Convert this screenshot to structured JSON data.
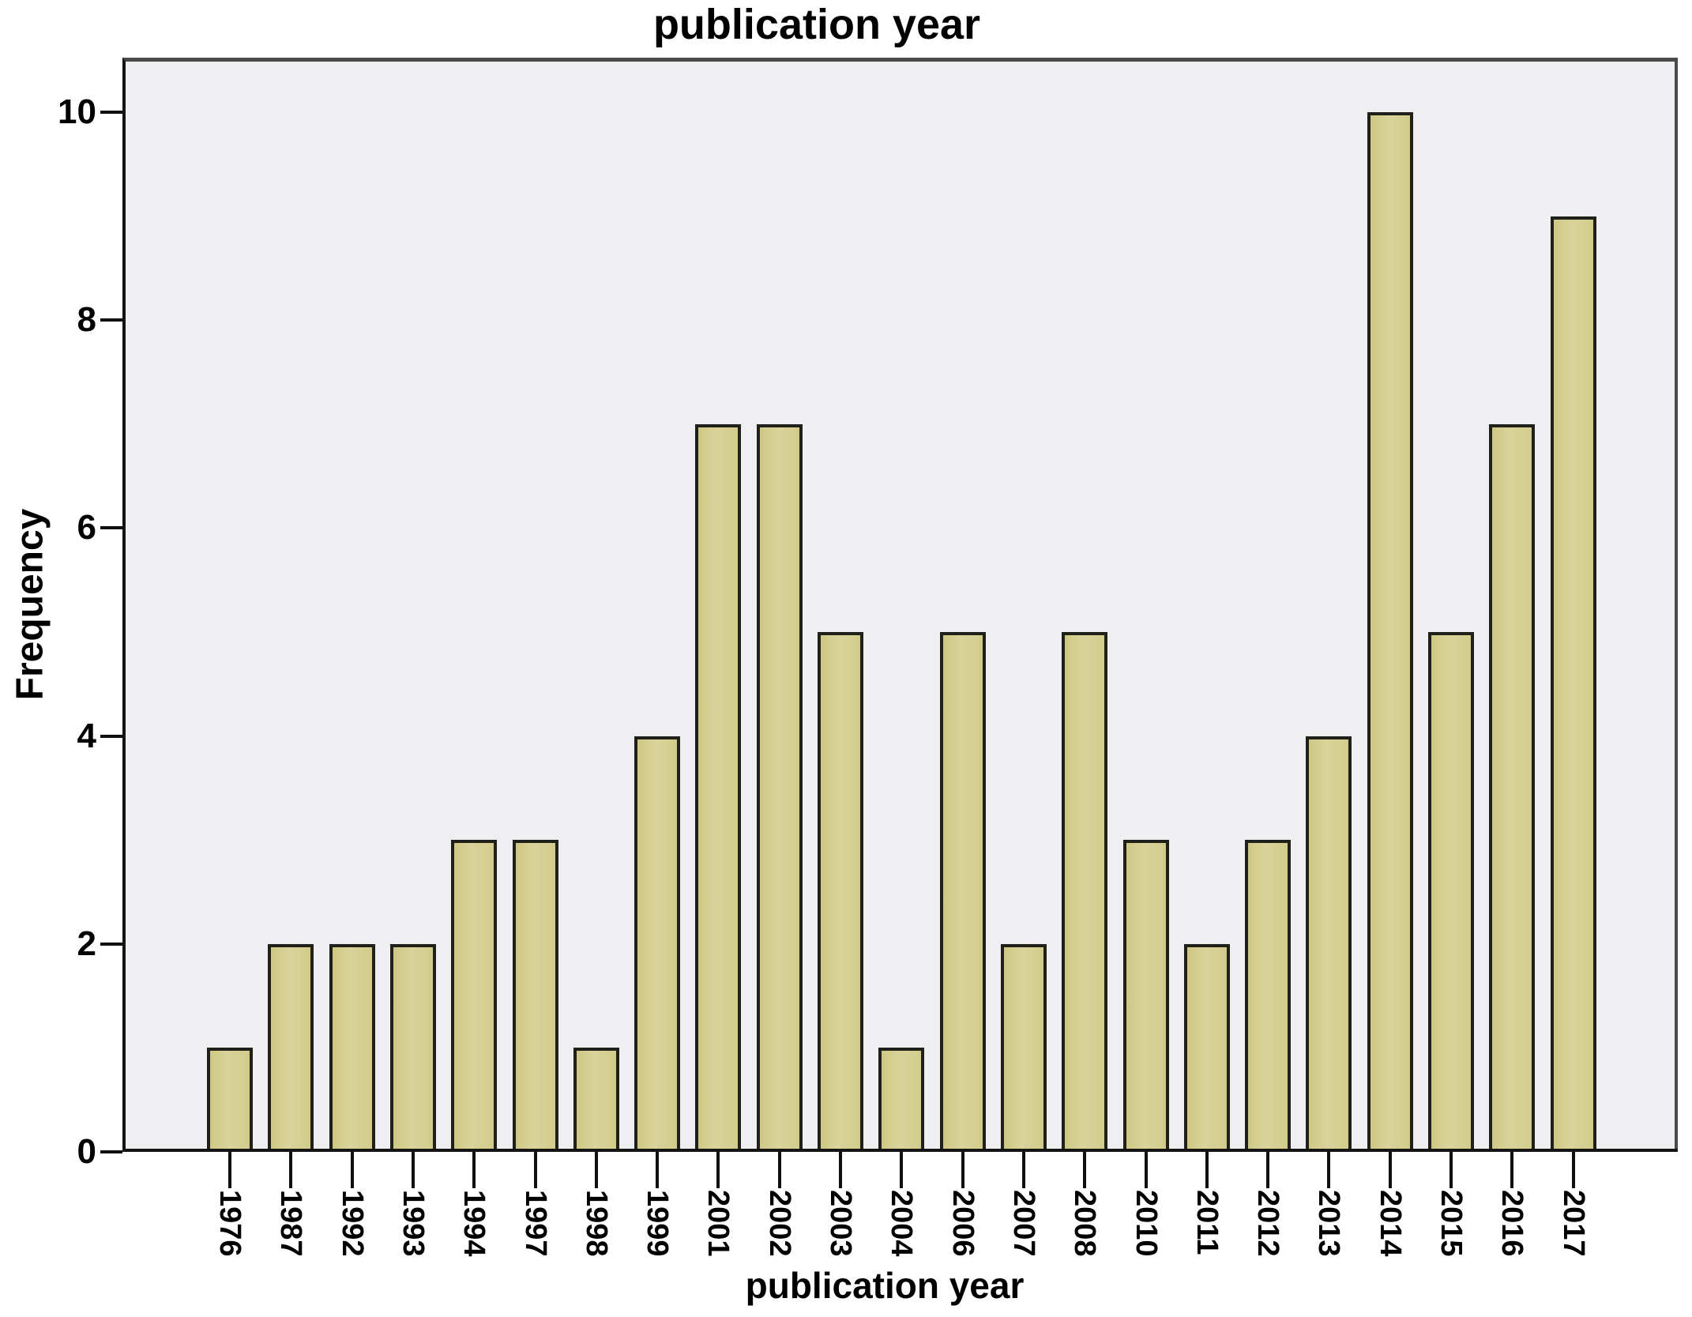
{
  "chart_data": {
    "type": "bar",
    "title": "publication year",
    "xlabel": "publication year",
    "ylabel": "Frequency",
    "categories": [
      "1976",
      "1987",
      "1992",
      "1993",
      "1994",
      "1997",
      "1998",
      "1999",
      "2001",
      "2002",
      "2003",
      "2004",
      "2006",
      "2007",
      "2008",
      "2010",
      "2011",
      "2012",
      "2013",
      "2014",
      "2015",
      "2016",
      "2017"
    ],
    "values": [
      1,
      2,
      2,
      2,
      3,
      3,
      1,
      4,
      7,
      7,
      5,
      1,
      5,
      2,
      5,
      3,
      2,
      3,
      4,
      10,
      5,
      7,
      9
    ],
    "yticks": [
      0,
      2,
      4,
      6,
      8,
      10
    ],
    "ylim": [
      0,
      10.5
    ],
    "grid": false,
    "legend_position": "none",
    "x_tick_rotation_deg": 90,
    "colors": {
      "bar_fill": "#d3cd8c",
      "bar_border": "#20201a",
      "plot_background": "#efeef0",
      "frame": "#4a4a4a",
      "axis": "#141414",
      "text": "#000000",
      "page_background": "#ffffff"
    }
  }
}
